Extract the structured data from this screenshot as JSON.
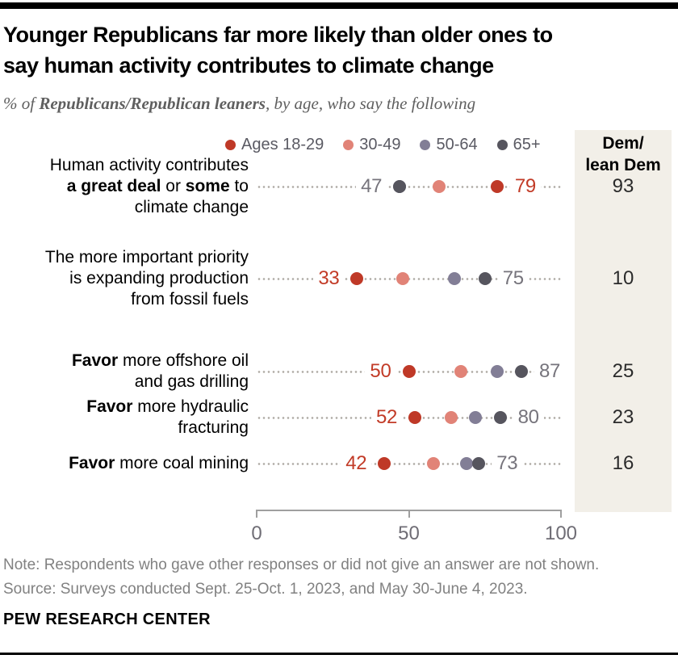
{
  "header": {
    "title_line1": "Younger Republicans far more likely than older ones to",
    "title_line2": "say human activity contributes to climate change",
    "subtitle": "% of **Republicans/Republican leaners**, by age, who say the following"
  },
  "legend": {
    "items": [
      {
        "label": "Ages 18-29",
        "color": "#bf3927"
      },
      {
        "label": "30-49",
        "color": "#e18377"
      },
      {
        "label": "50-64",
        "color": "#827e96"
      },
      {
        "label": "65+",
        "color": "#56555e"
      }
    ]
  },
  "dem_column": {
    "line1": "Dem/",
    "line2": "lean Dem",
    "background": "#f2efe8"
  },
  "chart_data": {
    "type": "scatter",
    "variant": "dot-plot",
    "title": "Younger Republicans far more likely than older ones to say human activity contributes to climate change",
    "xlabel": "",
    "ylabel": "",
    "x_axis": {
      "min": 0,
      "max": 100,
      "ticks": [
        0,
        50,
        100
      ]
    },
    "grid": false,
    "legend_position": "top",
    "series": [
      {
        "key": "30-49",
        "color": "#e18377",
        "label_color": "#c23b27"
      },
      {
        "key": "50-64",
        "color": "#827e96",
        "label_color": "#76747c"
      },
      {
        "key": "65+",
        "color": "#56555e",
        "label_color": "#76747c"
      },
      {
        "key": "Ages 18-29",
        "color": "#bf3927",
        "label_color": "#c23b27"
      }
    ],
    "rows": [
      {
        "label_lines": [
          "Human activity contributes",
          "**a great deal** or **some** to",
          "climate change"
        ],
        "values": {
          "Ages 18-29": 79,
          "30-49": 60,
          "50-64": 47,
          "65+": 47
        },
        "value_labels": [
          {
            "series": "65+",
            "side": "left"
          },
          {
            "series": "Ages 18-29",
            "side": "right"
          }
        ],
        "dem_value": 93
      },
      {
        "label_lines": [
          "The more important priority",
          "is expanding production",
          "from fossil fuels"
        ],
        "values": {
          "Ages 18-29": 33,
          "30-49": 48,
          "50-64": 65,
          "65+": 75
        },
        "value_labels": [
          {
            "series": "Ages 18-29",
            "side": "left"
          },
          {
            "series": "65+",
            "side": "right"
          }
        ],
        "dem_value": 10
      },
      {
        "label_lines": [
          "**Favor** more offshore oil",
          "and gas drilling"
        ],
        "values": {
          "Ages 18-29": 50,
          "30-49": 67,
          "50-64": 79,
          "65+": 87
        },
        "value_labels": [
          {
            "series": "Ages 18-29",
            "side": "left"
          },
          {
            "series": "65+",
            "side": "right"
          }
        ],
        "dem_value": 25
      },
      {
        "label_lines": [
          "**Favor** more hydraulic",
          "fracturing"
        ],
        "values": {
          "Ages 18-29": 52,
          "30-49": 64,
          "50-64": 72,
          "65+": 80
        },
        "value_labels": [
          {
            "series": "Ages 18-29",
            "side": "left"
          },
          {
            "series": "65+",
            "side": "right"
          }
        ],
        "dem_value": 23
      },
      {
        "label_lines": [
          "**Favor** more coal mining"
        ],
        "values": {
          "Ages 18-29": 42,
          "30-49": 58,
          "50-64": 69,
          "65+": 73
        },
        "value_labels": [
          {
            "series": "Ages 18-29",
            "side": "left"
          },
          {
            "series": "65+",
            "side": "right"
          }
        ],
        "dem_value": 16
      }
    ]
  },
  "footer": {
    "note": "Note: Respondents who gave other responses or did not give an answer are not shown.",
    "source": "Source: Surveys conducted Sept. 25-Oct. 1, 2023, and May 30-June 4, 2023.",
    "brand": "PEW RESEARCH CENTER"
  }
}
